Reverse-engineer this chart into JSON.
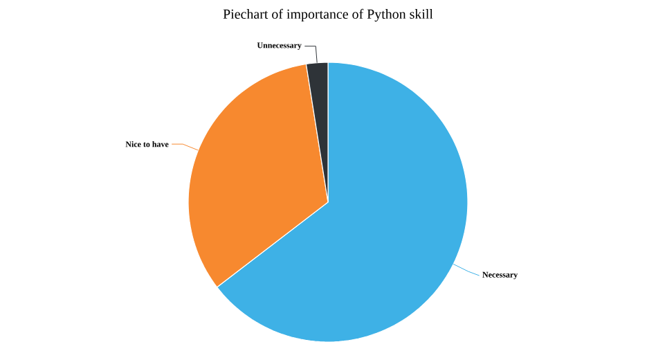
{
  "chart_data": {
    "type": "pie",
    "title": "Piechart of importance of Python skill",
    "categories": [
      "Necessary",
      "Nice to have",
      "Unnecessary"
    ],
    "values": [
      64.6,
      32.9,
      2.5
    ],
    "colors": [
      "#3eb1e6",
      "#f7892f",
      "#2e3338"
    ]
  }
}
